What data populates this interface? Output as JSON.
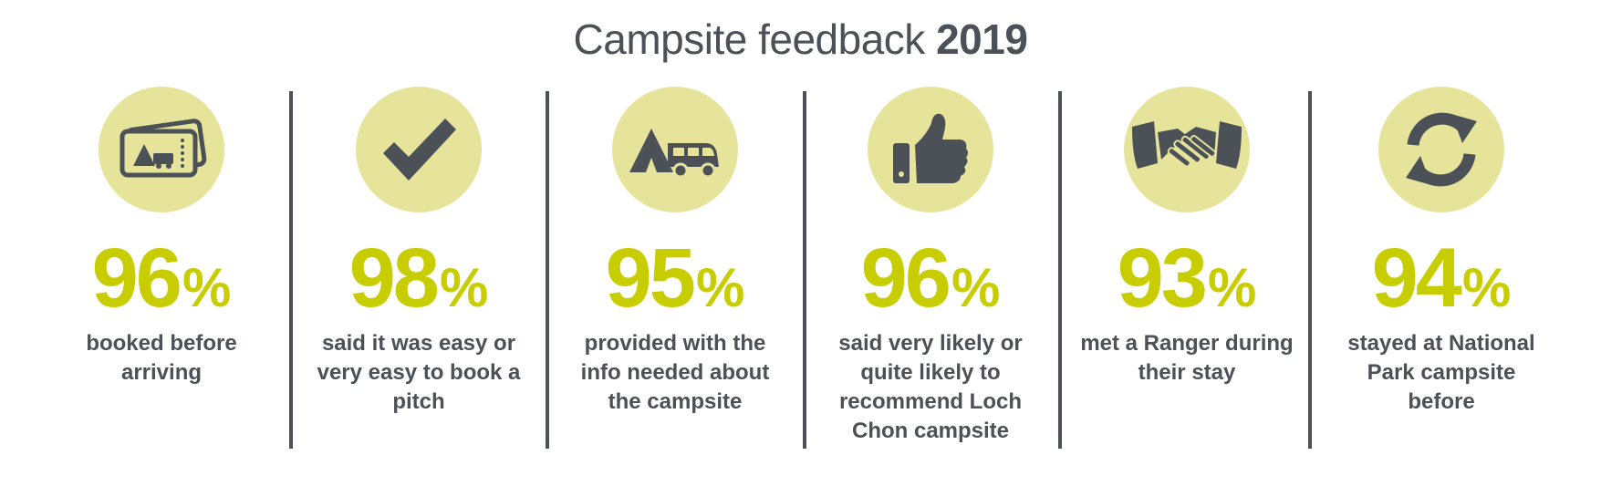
{
  "title": {
    "light": "Campsite feedback",
    "bold": "2019"
  },
  "colors": {
    "text": "#4b5157",
    "accent": "#c8cd00",
    "circle": "#e6e49a"
  },
  "stats": [
    {
      "icon": "ticket-icon",
      "value": "96",
      "unit": "%",
      "text": "booked before arriving"
    },
    {
      "icon": "checkmark-icon",
      "value": "98",
      "unit": "%",
      "text": "said it was easy or very easy to book a pitch"
    },
    {
      "icon": "tent-campervan-icon",
      "value": "95",
      "unit": "%",
      "text": "provided with the info needed about the campsite"
    },
    {
      "icon": "thumbs-up-icon",
      "value": "96",
      "unit": "%",
      "text": "said very likely or quite likely to recommend Loch Chon campsite"
    },
    {
      "icon": "handshake-icon",
      "value": "93",
      "unit": "%",
      "text": "met a Ranger during their stay"
    },
    {
      "icon": "refresh-icon",
      "value": "94",
      "unit": "%",
      "text": "stayed at National Park campsite before"
    }
  ]
}
